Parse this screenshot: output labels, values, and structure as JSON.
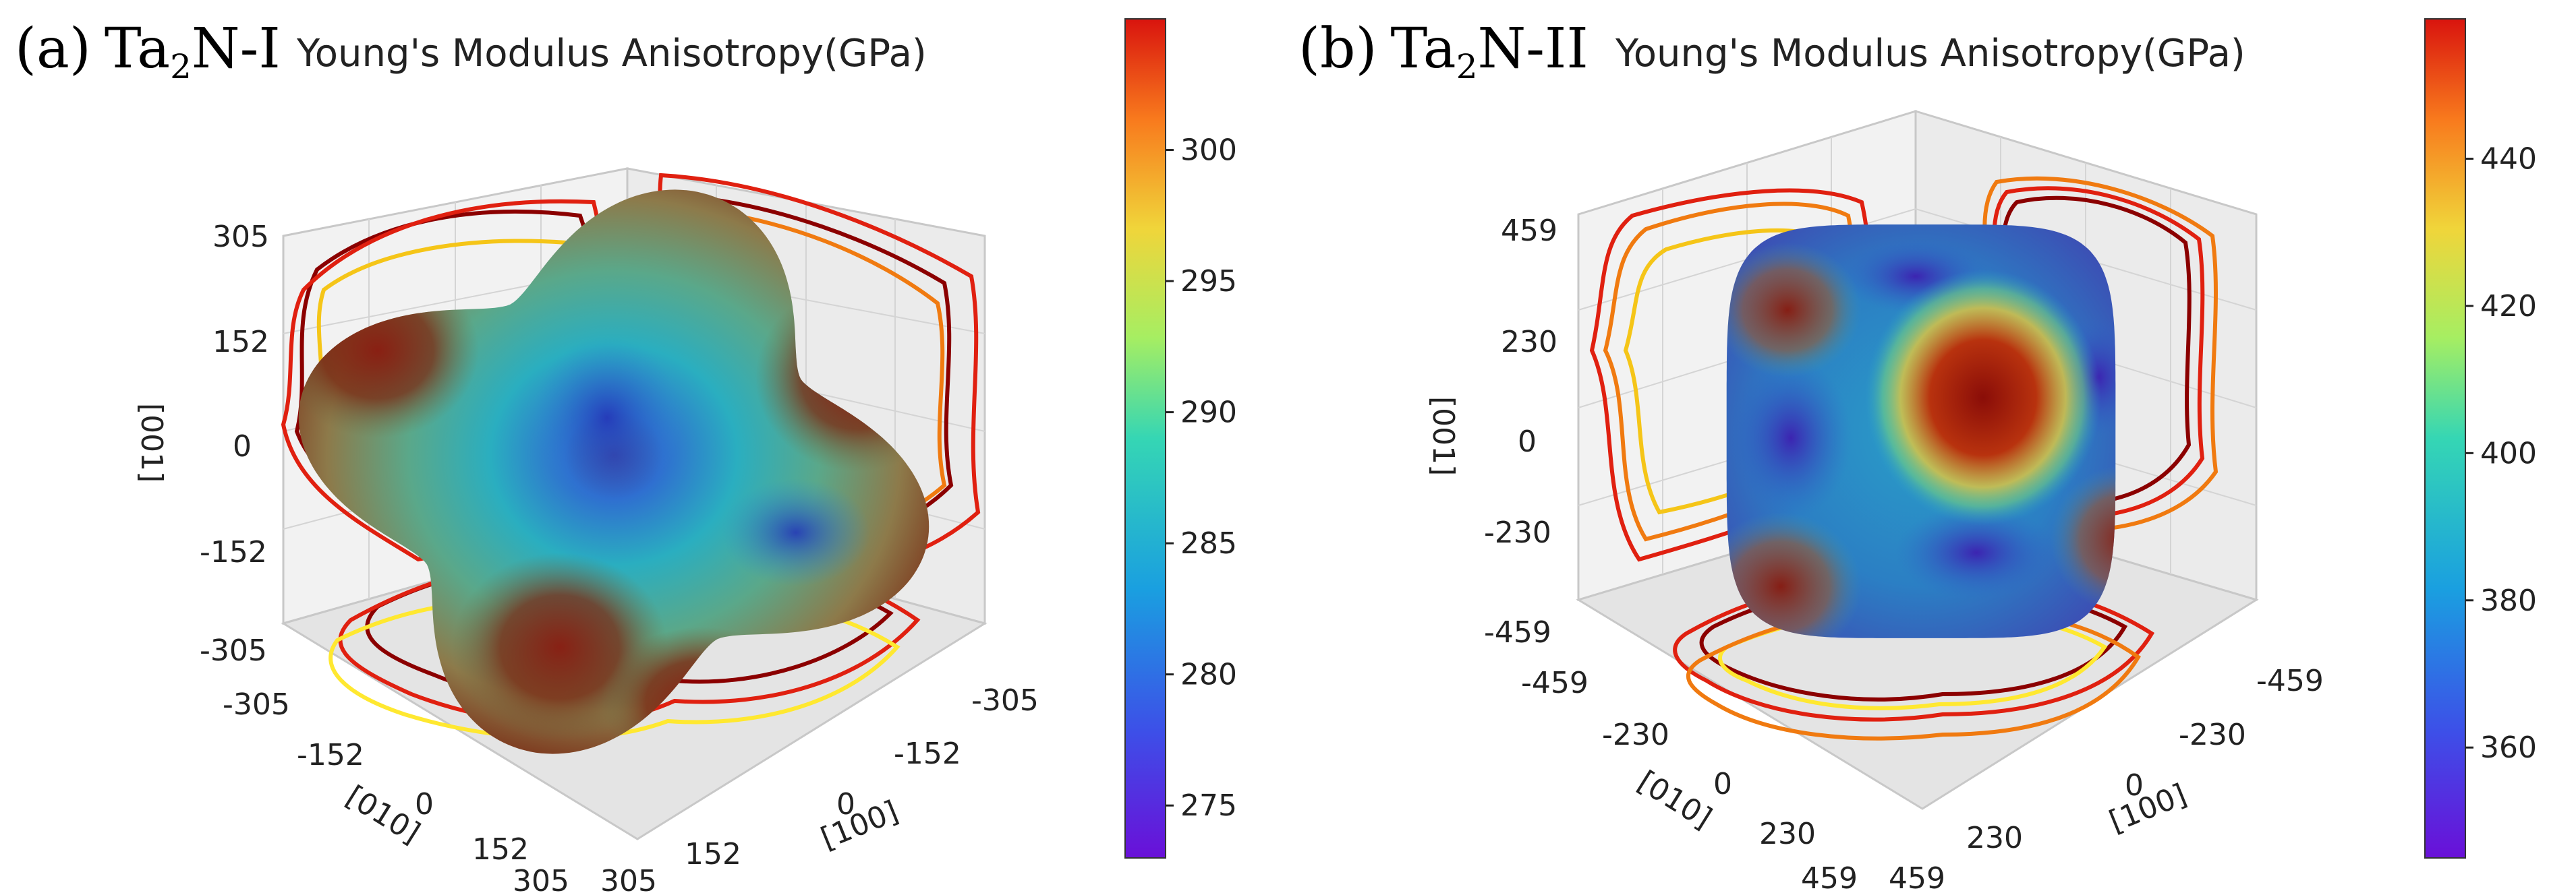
{
  "chart_data": [
    {
      "type": "surface3d",
      "panel_label": "(a)",
      "material_main": "Ta",
      "material_sub": "2",
      "material_tail": "N-I",
      "title": "Young's Modulus Anisotropy(GPa)",
      "axes": {
        "x": {
          "label": "[100]",
          "color": "#e0201a",
          "ticks": [
            "-305",
            "-152",
            "0",
            "152",
            "305"
          ],
          "range": [
            -305,
            305
          ]
        },
        "y": {
          "label": "[010]",
          "color": "#1f8a1f",
          "ticks": [
            "-305",
            "-152",
            "0",
            "152",
            "305"
          ],
          "range": [
            -305,
            305
          ]
        },
        "z": {
          "label": "[001]",
          "color": "#2020dd",
          "ticks": [
            "305",
            "152",
            "0",
            "-152",
            "-305"
          ],
          "range": [
            -305,
            305
          ]
        }
      },
      "colorbar": {
        "min": 273,
        "max": 305,
        "ticks": [
          "300",
          "295",
          "290",
          "285",
          "280",
          "275"
        ],
        "tick_values": [
          300,
          295,
          290,
          285,
          280,
          275
        ]
      },
      "projection_colors": [
        "#8b0000",
        "#e02010",
        "#f07a10",
        "#f5c518",
        "#ffe830"
      ]
    },
    {
      "type": "surface3d",
      "panel_label": "(b)",
      "material_main": "Ta",
      "material_sub": "2",
      "material_tail": "N-II",
      "title": "Young's Modulus Anisotropy(GPa)",
      "axes": {
        "x": {
          "label": "[100]",
          "color": "#e0201a",
          "ticks": [
            "-459",
            "-230",
            "0",
            "230",
            "459"
          ],
          "range": [
            -459,
            459
          ]
        },
        "y": {
          "label": "[010]",
          "color": "#1f8a1f",
          "ticks": [
            "-459",
            "-230",
            "0",
            "230",
            "459"
          ],
          "range": [
            -459,
            459
          ]
        },
        "z": {
          "label": "[001]",
          "color": "#2020dd",
          "ticks": [
            "459",
            "230",
            "0",
            "-230",
            "-459"
          ],
          "range": [
            -459,
            459
          ]
        }
      },
      "colorbar": {
        "min": 345,
        "max": 459,
        "ticks": [
          "440",
          "420",
          "400",
          "380",
          "360"
        ],
        "tick_values": [
          440,
          420,
          400,
          380,
          360
        ]
      },
      "projection_colors": [
        "#8b0000",
        "#e02010",
        "#f07a10",
        "#f5c518",
        "#ffe830"
      ]
    }
  ]
}
